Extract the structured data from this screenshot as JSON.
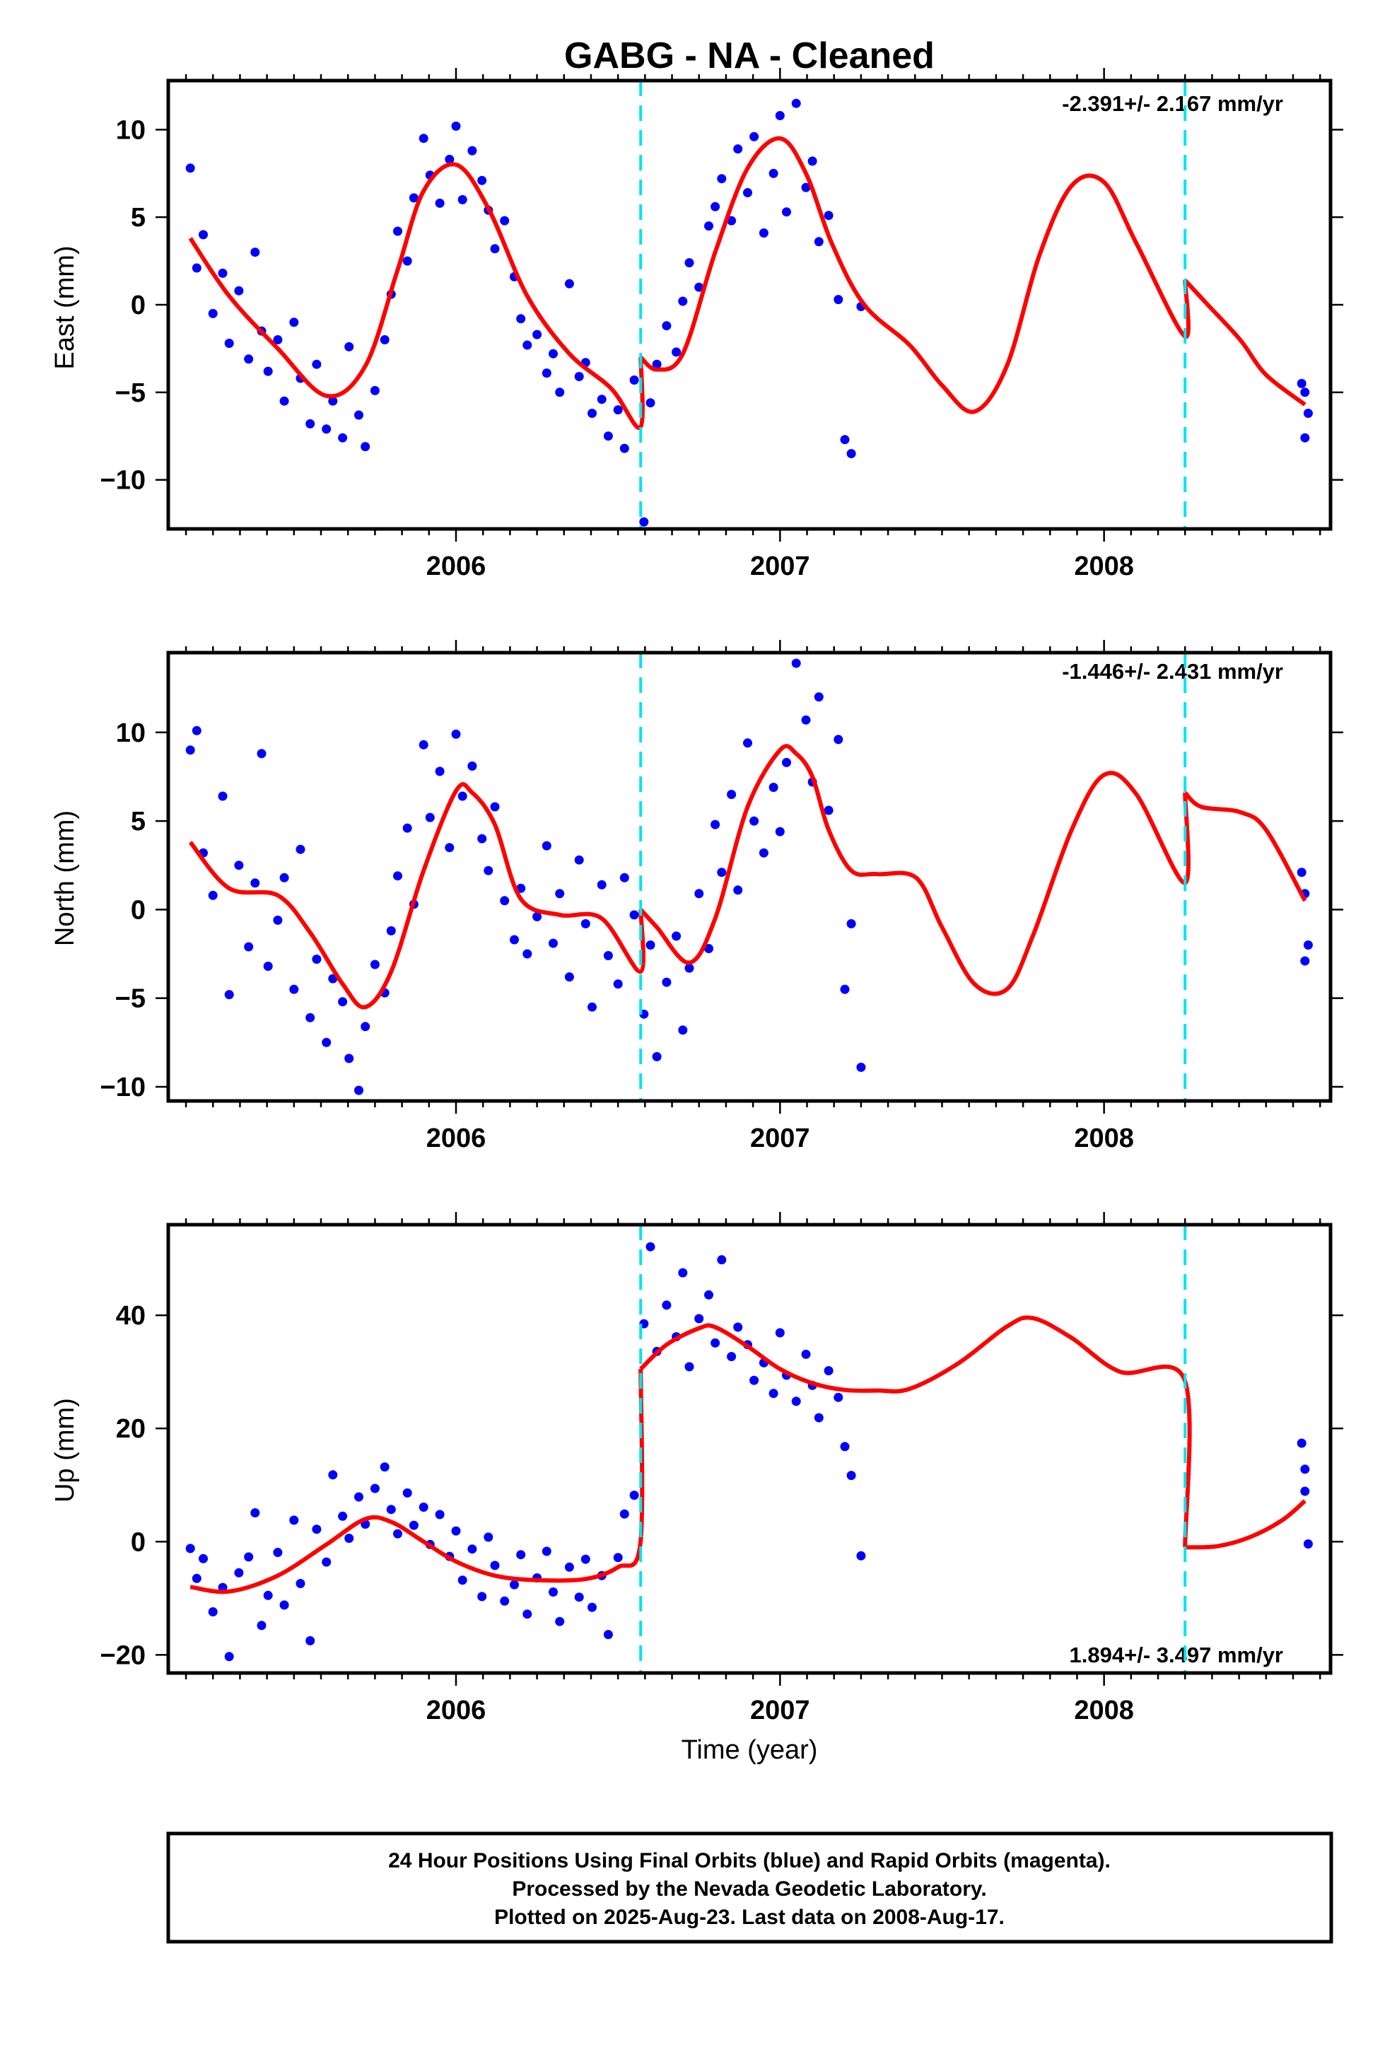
{
  "title": "GABG  - NA - Cleaned",
  "xlabel": "Time (year)",
  "footer": [
    "24 Hour Positions Using Final Orbits (blue) and Rapid Orbits (magenta).",
    "Processed by the Nevada Geodetic Laboratory.",
    "Plotted on 2025-Aug-23. Last data on 2008-Aug-17."
  ],
  "colors": {
    "points": "#0000ff",
    "model": "#ff0000",
    "breaks": "#00e5ee",
    "frame": "#000000"
  },
  "chart_data": [
    {
      "type": "scatter",
      "component": "east",
      "ylabel": "East (mm)",
      "rate_text": "-2.391+/- 2.167 mm/yr",
      "xlim": [
        2005.112,
        2008.699
      ],
      "ylim": [
        -12.8,
        12.8
      ],
      "xticks": [
        2006,
        2007,
        2008
      ],
      "xtick_labels": [
        "2006",
        "2007",
        "2008"
      ],
      "yticks": [
        -10,
        -5,
        0,
        5,
        10
      ],
      "ytick_labels": [
        "−10",
        "−5",
        "0",
        "5",
        "10"
      ],
      "breaks": [
        2006.57,
        2008.25
      ],
      "model_x": [
        2005.18,
        2005.3,
        2005.45,
        2005.6,
        2005.72,
        2005.82,
        2005.9,
        2006.0,
        2006.1,
        2006.22,
        2006.35,
        2006.48,
        2006.569,
        2006.57,
        2006.62,
        2006.7,
        2006.8,
        2006.9,
        2007.0,
        2007.08,
        2007.16,
        2007.26,
        2007.4,
        2007.5,
        2007.6,
        2007.7,
        2007.8,
        2007.9,
        2008.0,
        2008.1,
        2008.249,
        2008.25,
        2008.32,
        2008.42,
        2008.5,
        2008.62
      ],
      "model_y": [
        3.8,
        0.5,
        -2.5,
        -5.2,
        -3.5,
        2.0,
        6.5,
        8.0,
        5.5,
        0.5,
        -2.8,
        -4.8,
        -7.0,
        -3.0,
        -3.7,
        -2.8,
        3.0,
        7.8,
        9.5,
        7.5,
        3.5,
        0.0,
        -2.3,
        -4.6,
        -6.1,
        -3.5,
        2.8,
        6.8,
        7.0,
        3.5,
        -1.8,
        1.4,
        0.0,
        -2.0,
        -4.0,
        -5.7
      ],
      "points": {
        "x": [
          2005.18,
          2005.2,
          2005.22,
          2005.25,
          2005.28,
          2005.3,
          2005.33,
          2005.36,
          2005.38,
          2005.4,
          2005.42,
          2005.45,
          2005.47,
          2005.5,
          2005.52,
          2005.55,
          2005.57,
          2005.6,
          2005.62,
          2005.65,
          2005.67,
          2005.7,
          2005.72,
          2005.75,
          2005.78,
          2005.8,
          2005.82,
          2005.85,
          2005.87,
          2005.9,
          2005.92,
          2005.95,
          2005.98,
          2006.0,
          2006.02,
          2006.05,
          2006.08,
          2006.1,
          2006.12,
          2006.15,
          2006.18,
          2006.2,
          2006.22,
          2006.25,
          2006.28,
          2006.3,
          2006.32,
          2006.35,
          2006.38,
          2006.4,
          2006.42,
          2006.45,
          2006.47,
          2006.5,
          2006.52,
          2006.55,
          2006.58,
          2006.6,
          2006.62,
          2006.65,
          2006.68,
          2006.7,
          2006.72,
          2006.75,
          2006.78,
          2006.8,
          2006.82,
          2006.85,
          2006.87,
          2006.9,
          2006.92,
          2006.95,
          2006.98,
          2007.0,
          2007.02,
          2007.05,
          2007.08,
          2007.1,
          2007.12,
          2007.15,
          2007.18,
          2007.2,
          2007.22,
          2007.25,
          2008.61,
          2008.62,
          2008.62,
          2008.63
        ],
        "y": [
          7.8,
          2.1,
          4.0,
          -0.5,
          1.8,
          -2.2,
          0.8,
          -3.1,
          3.0,
          -1.5,
          -3.8,
          -2.0,
          -5.5,
          -1.0,
          -4.2,
          -6.8,
          -3.4,
          -7.1,
          -5.5,
          -7.6,
          -2.4,
          -6.3,
          -8.1,
          -4.9,
          -2.0,
          0.6,
          4.2,
          2.5,
          6.1,
          9.5,
          7.4,
          5.8,
          8.3,
          10.2,
          6.0,
          8.8,
          7.1,
          5.4,
          3.2,
          4.8,
          1.6,
          -0.8,
          -2.3,
          -1.7,
          -3.9,
          -2.8,
          -5.0,
          1.2,
          -4.1,
          -3.3,
          -6.2,
          -5.4,
          -7.5,
          -6.0,
          -8.2,
          -4.3,
          -12.4,
          -5.6,
          -3.4,
          -1.2,
          -2.7,
          0.2,
          2.4,
          1.0,
          4.5,
          5.6,
          7.2,
          4.8,
          8.9,
          6.4,
          9.6,
          4.1,
          7.5,
          10.8,
          5.3,
          11.5,
          6.7,
          8.2,
          3.6,
          5.1,
          0.3,
          -7.7,
          -8.5,
          -0.1,
          -4.5,
          -7.6,
          -5.0,
          -6.2
        ]
      }
    },
    {
      "type": "scatter",
      "component": "north",
      "ylabel": "North (mm)",
      "rate_text": "-1.446+/- 2.431 mm/yr",
      "xlim": [
        2005.112,
        2008.699
      ],
      "ylim": [
        -10.8,
        14.5
      ],
      "xticks": [
        2006,
        2007,
        2008
      ],
      "xtick_labels": [
        "2006",
        "2007",
        "2008"
      ],
      "yticks": [
        -10,
        -5,
        0,
        5,
        10
      ],
      "ytick_labels": [
        "−10",
        "−5",
        "0",
        "5",
        "10"
      ],
      "breaks": [
        2006.57,
        2008.25
      ],
      "model_x": [
        2005.18,
        2005.3,
        2005.45,
        2005.55,
        2005.65,
        2005.72,
        2005.8,
        2005.9,
        2006.0,
        2006.05,
        2006.12,
        2006.2,
        2006.32,
        2006.45,
        2006.569,
        2006.57,
        2006.62,
        2006.72,
        2006.8,
        2006.9,
        2007.0,
        2007.05,
        2007.1,
        2007.15,
        2007.22,
        2007.3,
        2007.42,
        2007.5,
        2007.6,
        2007.7,
        2007.78,
        2007.9,
        2008.0,
        2008.1,
        2008.249,
        2008.25,
        2008.3,
        2008.42,
        2008.5,
        2008.62
      ],
      "model_y": [
        3.8,
        1.2,
        0.8,
        -1.3,
        -4.2,
        -5.5,
        -3.5,
        2.2,
        6.7,
        6.6,
        4.8,
        0.6,
        -0.3,
        -0.5,
        -3.5,
        0.0,
        -1.0,
        -3.0,
        -0.5,
        5.8,
        9.0,
        8.8,
        7.5,
        4.5,
        2.2,
        2.0,
        1.8,
        -1.0,
        -4.2,
        -4.5,
        -1.5,
        4.5,
        7.6,
        6.5,
        1.5,
        6.6,
        5.8,
        5.5,
        4.5,
        0.5
      ],
      "points": {
        "x": [
          2005.18,
          2005.2,
          2005.22,
          2005.25,
          2005.28,
          2005.3,
          2005.33,
          2005.36,
          2005.38,
          2005.4,
          2005.42,
          2005.45,
          2005.47,
          2005.5,
          2005.52,
          2005.55,
          2005.57,
          2005.6,
          2005.62,
          2005.65,
          2005.67,
          2005.7,
          2005.72,
          2005.75,
          2005.78,
          2005.8,
          2005.82,
          2005.85,
          2005.87,
          2005.9,
          2005.92,
          2005.95,
          2005.98,
          2006.0,
          2006.02,
          2006.05,
          2006.08,
          2006.1,
          2006.12,
          2006.15,
          2006.18,
          2006.2,
          2006.22,
          2006.25,
          2006.28,
          2006.3,
          2006.32,
          2006.35,
          2006.38,
          2006.4,
          2006.42,
          2006.45,
          2006.47,
          2006.5,
          2006.52,
          2006.55,
          2006.58,
          2006.6,
          2006.62,
          2006.65,
          2006.68,
          2006.7,
          2006.72,
          2006.75,
          2006.78,
          2006.8,
          2006.82,
          2006.85,
          2006.87,
          2006.9,
          2006.92,
          2006.95,
          2006.98,
          2007.0,
          2007.02,
          2007.05,
          2007.08,
          2007.1,
          2007.12,
          2007.15,
          2007.18,
          2007.2,
          2007.22,
          2007.25,
          2008.61,
          2008.62,
          2008.62,
          2008.63
        ],
        "y": [
          9.0,
          10.1,
          3.2,
          0.8,
          6.4,
          -4.8,
          2.5,
          -2.1,
          1.5,
          8.8,
          -3.2,
          -0.6,
          1.8,
          -4.5,
          3.4,
          -6.1,
          -2.8,
          -7.5,
          -3.9,
          -5.2,
          -8.4,
          -10.2,
          -6.6,
          -3.1,
          -4.7,
          -1.2,
          1.9,
          4.6,
          0.3,
          9.3,
          5.2,
          7.8,
          3.5,
          9.9,
          6.4,
          8.1,
          4.0,
          2.2,
          5.8,
          0.5,
          -1.7,
          1.2,
          -2.5,
          -0.4,
          3.6,
          -1.9,
          0.9,
          -3.8,
          2.8,
          -0.8,
          -5.5,
          1.4,
          -2.6,
          -4.2,
          1.8,
          -0.3,
          -5.9,
          -2.0,
          -8.3,
          -4.1,
          -1.5,
          -6.8,
          -3.3,
          0.9,
          -2.2,
          4.8,
          2.1,
          6.5,
          1.1,
          9.4,
          5.0,
          3.2,
          6.9,
          4.4,
          8.3,
          13.9,
          10.7,
          7.2,
          12.0,
          5.6,
          9.6,
          -4.5,
          -0.8,
          -8.9,
          2.1,
          -2.9,
          0.9,
          -2.0
        ]
      }
    },
    {
      "type": "scatter",
      "component": "up",
      "ylabel": "Up (mm)",
      "rate_text": "1.894+/- 3.497 mm/yr",
      "xlim": [
        2005.112,
        2008.699
      ],
      "ylim": [
        -23.2,
        56.0
      ],
      "xticks": [
        2006,
        2007,
        2008
      ],
      "xtick_labels": [
        "2006",
        "2007",
        "2008"
      ],
      "yticks": [
        -20,
        0,
        20,
        40
      ],
      "ytick_labels": [
        "−20",
        "0",
        "20",
        "40"
      ],
      "breaks": [
        2006.57,
        2008.25
      ],
      "model_x": [
        2005.18,
        2005.3,
        2005.45,
        2005.6,
        2005.72,
        2005.8,
        2005.9,
        2006.0,
        2006.12,
        2006.25,
        2006.4,
        2006.5,
        2006.569,
        2006.57,
        2006.65,
        2006.75,
        2006.8,
        2006.9,
        2007.0,
        2007.1,
        2007.2,
        2007.3,
        2007.4,
        2007.55,
        2007.7,
        2007.78,
        2007.9,
        2008.05,
        2008.249,
        2008.25,
        2008.35,
        2008.45,
        2008.55,
        2008.62
      ],
      "model_y": [
        -8.0,
        -8.8,
        -6.0,
        -0.5,
        4.0,
        3.5,
        0.0,
        -3.5,
        -6.0,
        -6.8,
        -6.6,
        -4.5,
        -0.3,
        30.5,
        34.8,
        37.7,
        37.9,
        34.5,
        30.5,
        28.0,
        26.8,
        26.7,
        27.0,
        31.5,
        38.0,
        39.5,
        36.0,
        30.0,
        28.5,
        -1.0,
        -0.8,
        0.8,
        3.8,
        7.2
      ],
      "points": {
        "x": [
          2005.18,
          2005.2,
          2005.22,
          2005.25,
          2005.28,
          2005.3,
          2005.33,
          2005.36,
          2005.38,
          2005.4,
          2005.42,
          2005.45,
          2005.47,
          2005.5,
          2005.52,
          2005.55,
          2005.57,
          2005.6,
          2005.62,
          2005.65,
          2005.67,
          2005.7,
          2005.72,
          2005.75,
          2005.78,
          2005.8,
          2005.82,
          2005.85,
          2005.87,
          2005.9,
          2005.92,
          2005.95,
          2005.98,
          2006.0,
          2006.02,
          2006.05,
          2006.08,
          2006.1,
          2006.12,
          2006.15,
          2006.18,
          2006.2,
          2006.22,
          2006.25,
          2006.28,
          2006.3,
          2006.32,
          2006.35,
          2006.38,
          2006.4,
          2006.42,
          2006.45,
          2006.47,
          2006.5,
          2006.52,
          2006.55,
          2006.58,
          2006.6,
          2006.62,
          2006.65,
          2006.68,
          2006.7,
          2006.72,
          2006.75,
          2006.78,
          2006.8,
          2006.82,
          2006.85,
          2006.87,
          2006.9,
          2006.92,
          2006.95,
          2006.98,
          2007.0,
          2007.02,
          2007.05,
          2007.08,
          2007.1,
          2007.12,
          2007.15,
          2007.18,
          2007.2,
          2007.22,
          2007.25,
          2008.61,
          2008.62,
          2008.62,
          2008.63
        ],
        "y": [
          -1.2,
          -6.5,
          -3.0,
          -12.4,
          -8.1,
          -20.3,
          -5.5,
          -2.7,
          5.1,
          -14.8,
          -9.5,
          -1.9,
          -11.2,
          3.8,
          -7.4,
          -17.5,
          2.2,
          -3.6,
          11.8,
          4.5,
          0.6,
          7.9,
          3.1,
          9.4,
          13.2,
          5.7,
          1.4,
          8.6,
          2.9,
          6.1,
          -0.5,
          4.8,
          -2.6,
          1.9,
          -6.8,
          -1.3,
          -9.7,
          0.8,
          -4.2,
          -10.5,
          -7.6,
          -2.3,
          -12.8,
          -6.4,
          -1.7,
          -8.9,
          -14.1,
          -4.5,
          -9.8,
          -3.1,
          -11.6,
          -6.0,
          -16.4,
          -2.8,
          4.9,
          8.2,
          38.5,
          52.1,
          33.6,
          41.8,
          36.2,
          47.5,
          30.9,
          39.4,
          43.6,
          35.1,
          49.8,
          32.7,
          37.9,
          34.8,
          28.5,
          31.6,
          26.2,
          36.9,
          29.4,
          24.8,
          33.1,
          27.6,
          21.9,
          30.2,
          25.5,
          16.8,
          11.7,
          -2.5,
          17.4,
          8.9,
          12.8,
          -0.4
        ]
      }
    }
  ]
}
